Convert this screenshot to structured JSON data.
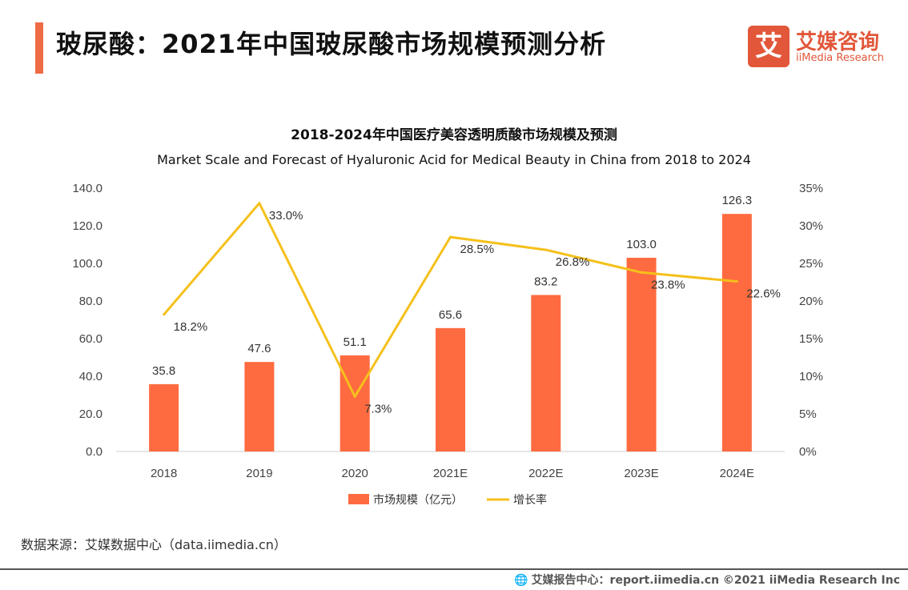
{
  "header": {
    "title": "玻尿酸：2021年中国玻尿酸市场规模预测分析",
    "accent_color": "#ee6b45"
  },
  "logo": {
    "mark_glyph": "艾",
    "name_cn": "艾媒咨询",
    "name_en": "iiMedia Research",
    "color": "#e2573a"
  },
  "chart_data": {
    "type": "bar",
    "title": "2018-2024年中国医疗美容透明质酸市场规模及预测",
    "subtitle": "Market Scale and Forecast of Hyaluronic Acid for Medical Beauty in China from 2018 to 2024",
    "categories": [
      "2018",
      "2019",
      "2020",
      "2021E",
      "2022E",
      "2023E",
      "2024E"
    ],
    "series": [
      {
        "name": "市场规模（亿元）",
        "kind": "bar",
        "axis": "left",
        "color": "#ff6b40",
        "values": [
          35.8,
          47.6,
          51.1,
          65.6,
          83.2,
          103.0,
          126.3
        ],
        "labels": [
          "35.8",
          "47.6",
          "51.1",
          "65.6",
          "83.2",
          "103.0",
          "126.3"
        ]
      },
      {
        "name": "增长率",
        "kind": "line",
        "axis": "right",
        "color": "#f5c01b",
        "values": [
          18.2,
          33.0,
          7.3,
          28.5,
          26.8,
          23.8,
          22.6
        ],
        "labels": [
          "18.2%",
          "33.0%",
          "7.3%",
          "28.5%",
          "26.8%",
          "23.8%",
          "22.6%"
        ]
      }
    ],
    "y_left": {
      "range": [
        0,
        140
      ],
      "ticks": [
        "0.0",
        "20.0",
        "40.0",
        "60.0",
        "80.0",
        "100.0",
        "120.0",
        "140.0"
      ]
    },
    "y_right": {
      "range": [
        0,
        35
      ],
      "ticks": [
        "0%",
        "5%",
        "10%",
        "15%",
        "20%",
        "25%",
        "30%",
        "35%"
      ]
    },
    "grid": false,
    "legend_position": "bottom"
  },
  "source_text": "数据来源：艾媒数据中心（data.iimedia.cn）",
  "footer": {
    "text": "艾媒报告中心：report.iimedia.cn    ©2021  iiMedia Research  Inc"
  }
}
